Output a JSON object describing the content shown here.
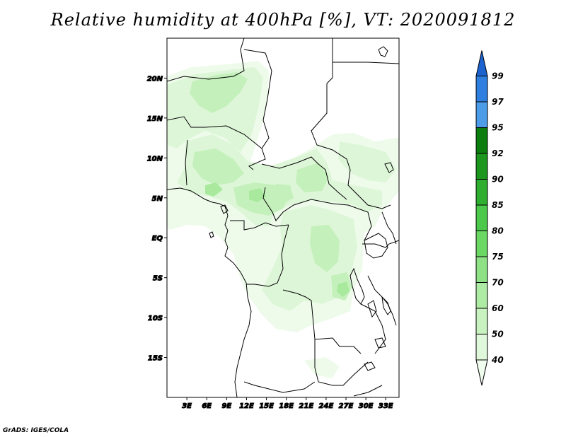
{
  "title": "Relative humidity at 400hPa [%], VT: 2020091812",
  "footer": "GrADS: IGES/COLA",
  "map": {
    "projection": "latlon",
    "lon_range": [
      0,
      35
    ],
    "lat_range": [
      -20,
      25
    ],
    "lon_tick_labels": [
      "3E",
      "6E",
      "9E",
      "12E",
      "15E",
      "18E",
      "21E",
      "24E",
      "27E",
      "30E",
      "33E"
    ],
    "lat_tick_labels": [
      "20N",
      "15N",
      "10N",
      "5N",
      "EQ",
      "5S",
      "10S",
      "15S"
    ]
  },
  "colorbar": {
    "levels": [
      "40",
      "50",
      "60",
      "70",
      "75",
      "80",
      "85",
      "90",
      "92",
      "95",
      "97",
      "99"
    ],
    "colors": [
      "#f0fcee",
      "#dff7da",
      "#c8f2c0",
      "#aeeba4",
      "#8ee285",
      "#6bd866",
      "#4cc94a",
      "#2fae2f",
      "#1d961f",
      "#0c7e10",
      "#4c9ce8",
      "#2e7fe0",
      "#1d63cf"
    ]
  }
}
